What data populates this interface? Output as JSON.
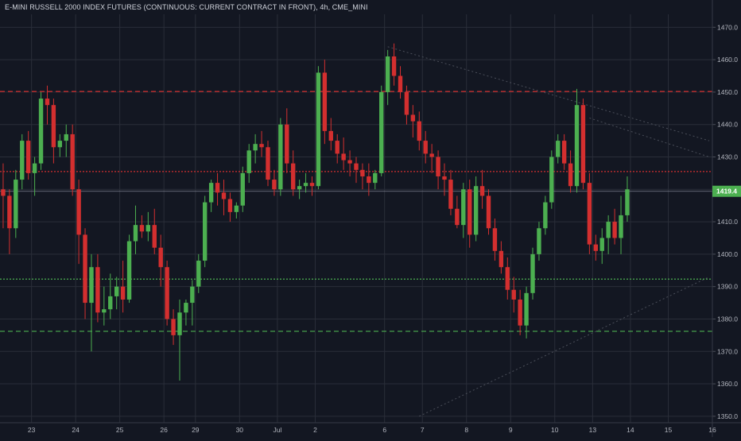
{
  "chart_data": {
    "type": "candlestick",
    "title": "E-MINI RUSSELL 2000 INDEX FUTURES (CONTINUOUS: CURRENT CONTRACT IN FRONT), 4h, CME_MINI",
    "ylim": [
      1348,
      1474
    ],
    "y_ticks": [
      1350,
      1360,
      1370,
      1380,
      1390,
      1400,
      1410,
      1420,
      1430,
      1440,
      1450,
      1460,
      1470
    ],
    "y_tick_labels": [
      "1350.0",
      "1360.0",
      "1370.0",
      "1380.0",
      "1390.0",
      "1400.0",
      "1410.0",
      "1420.0",
      "1430.0",
      "1440.0",
      "1450.0",
      "1460.0",
      "1470.0"
    ],
    "x_tick_labels": [
      "23",
      "24",
      "25",
      "26",
      "29",
      "30",
      "Jul",
      "2",
      "6",
      "7",
      "8",
      "9",
      "10",
      "13",
      "14",
      "15",
      "16"
    ],
    "x_tick_bar_index": [
      4.5,
      11.5,
      18.5,
      25.5,
      30.5,
      37.5,
      43.5,
      49.5,
      60.5,
      66.5,
      73.5,
      80.5,
      87.5,
      93.5,
      99.5,
      105.5,
      112.5
    ],
    "bars_visible_extent": 113,
    "last_price_label": "1419.4",
    "last_price": 1419.4,
    "colors": {
      "up": "#4caf50",
      "down": "#d32f2f",
      "background": "#131722",
      "grid": "#2a2e39",
      "text": "#b2b5be"
    },
    "horizontal_lines": [
      {
        "price": 1450.2,
        "style": "dashed",
        "color": "#d32f2f"
      },
      {
        "price": 1425.5,
        "style": "dotted",
        "color": "#d32f2f"
      },
      {
        "price": 1419.4,
        "style": "solid",
        "color": "#7d8190"
      },
      {
        "price": 1392.3,
        "style": "dotted",
        "color": "#4caf50"
      },
      {
        "price": 1376.2,
        "style": "dashed",
        "color": "#4caf50"
      }
    ],
    "trend_lines": [
      {
        "from": [
          61,
          1464
        ],
        "to": [
          112,
          1435
        ]
      },
      {
        "from": [
          93,
          1442
        ],
        "to": [
          112,
          1430
        ]
      },
      {
        "from": [
          66,
          1350
        ],
        "to": [
          112,
          1393
        ]
      }
    ],
    "ohlc": [
      [
        1420,
        1428,
        1408,
        1418
      ],
      [
        1418,
        1420,
        1400,
        1408
      ],
      [
        1408,
        1426,
        1405,
        1423
      ],
      [
        1423,
        1437,
        1420,
        1435
      ],
      [
        1435,
        1438,
        1423,
        1425
      ],
      [
        1425,
        1430,
        1418,
        1428
      ],
      [
        1428,
        1450,
        1426,
        1448
      ],
      [
        1448,
        1452,
        1440,
        1446
      ],
      [
        1446,
        1448,
        1428,
        1433
      ],
      [
        1433,
        1437,
        1430,
        1435
      ],
      [
        1435,
        1440,
        1430,
        1437
      ],
      [
        1437,
        1440,
        1418,
        1420
      ],
      [
        1420,
        1423,
        1397,
        1406
      ],
      [
        1406,
        1408,
        1380,
        1385
      ],
      [
        1385,
        1400,
        1370,
        1396
      ],
      [
        1396,
        1400,
        1379,
        1382
      ],
      [
        1382,
        1390,
        1378,
        1383
      ],
      [
        1383,
        1394,
        1380,
        1387
      ],
      [
        1387,
        1393,
        1383,
        1390
      ],
      [
        1390,
        1398,
        1382,
        1386
      ],
      [
        1386,
        1406,
        1385,
        1404
      ],
      [
        1404,
        1415,
        1400,
        1409
      ],
      [
        1409,
        1412,
        1405,
        1407
      ],
      [
        1407,
        1413,
        1404,
        1409
      ],
      [
        1409,
        1414,
        1400,
        1402
      ],
      [
        1402,
        1406,
        1390,
        1396
      ],
      [
        1396,
        1398,
        1378,
        1380
      ],
      [
        1380,
        1383,
        1372,
        1375
      ],
      [
        1375,
        1386,
        1361,
        1382
      ],
      [
        1382,
        1386,
        1378,
        1385
      ],
      [
        1385,
        1392,
        1378,
        1390
      ],
      [
        1390,
        1400,
        1388,
        1398
      ],
      [
        1398,
        1418,
        1396,
        1416
      ],
      [
        1416,
        1423,
        1413,
        1422
      ],
      [
        1422,
        1425,
        1415,
        1419
      ],
      [
        1419,
        1423,
        1412,
        1417
      ],
      [
        1417,
        1419,
        1410,
        1413
      ],
      [
        1413,
        1416,
        1411,
        1415
      ],
      [
        1415,
        1427,
        1413,
        1425
      ],
      [
        1425,
        1434,
        1422,
        1432
      ],
      [
        1432,
        1437,
        1428,
        1434
      ],
      [
        1434,
        1438,
        1430,
        1433
      ],
      [
        1433,
        1435,
        1421,
        1423
      ],
      [
        1423,
        1426,
        1418,
        1420
      ],
      [
        1420,
        1442,
        1418,
        1440
      ],
      [
        1440,
        1445,
        1425,
        1428
      ],
      [
        1428,
        1432,
        1418,
        1420
      ],
      [
        1420,
        1423,
        1417,
        1421
      ],
      [
        1421,
        1425,
        1419,
        1422
      ],
      [
        1422,
        1424,
        1418,
        1421
      ],
      [
        1421,
        1458,
        1420,
        1456
      ],
      [
        1456,
        1460,
        1434,
        1438
      ],
      [
        1438,
        1442,
        1432,
        1435
      ],
      [
        1435,
        1437,
        1428,
        1431
      ],
      [
        1431,
        1436,
        1426,
        1429
      ],
      [
        1429,
        1432,
        1424,
        1428
      ],
      [
        1428,
        1430,
        1422,
        1426
      ],
      [
        1426,
        1428,
        1420,
        1424
      ],
      [
        1424,
        1428,
        1418,
        1422
      ],
      [
        1422,
        1426,
        1420,
        1425
      ],
      [
        1425,
        1452,
        1424,
        1450
      ],
      [
        1450,
        1463,
        1446,
        1461
      ],
      [
        1461,
        1465,
        1452,
        1455
      ],
      [
        1455,
        1458,
        1448,
        1450
      ],
      [
        1450,
        1452,
        1440,
        1443
      ],
      [
        1443,
        1446,
        1436,
        1441
      ],
      [
        1441,
        1444,
        1432,
        1435
      ],
      [
        1435,
        1438,
        1428,
        1431
      ],
      [
        1431,
        1434,
        1425,
        1430
      ],
      [
        1430,
        1432,
        1420,
        1424
      ],
      [
        1424,
        1428,
        1418,
        1423
      ],
      [
        1423,
        1426,
        1412,
        1414
      ],
      [
        1414,
        1418,
        1408,
        1409
      ],
      [
        1409,
        1422,
        1405,
        1420
      ],
      [
        1420,
        1423,
        1402,
        1406
      ],
      [
        1406,
        1424,
        1404,
        1421
      ],
      [
        1421,
        1426,
        1414,
        1418
      ],
      [
        1418,
        1420,
        1406,
        1408
      ],
      [
        1408,
        1411,
        1398,
        1401
      ],
      [
        1401,
        1404,
        1394,
        1396
      ],
      [
        1396,
        1399,
        1386,
        1389
      ],
      [
        1389,
        1393,
        1382,
        1386
      ],
      [
        1386,
        1389,
        1375,
        1378
      ],
      [
        1378,
        1390,
        1374,
        1388
      ],
      [
        1388,
        1402,
        1386,
        1400
      ],
      [
        1400,
        1410,
        1398,
        1408
      ],
      [
        1408,
        1418,
        1406,
        1416
      ],
      [
        1416,
        1432,
        1414,
        1430
      ],
      [
        1430,
        1437,
        1428,
        1435
      ],
      [
        1435,
        1437,
        1426,
        1428
      ],
      [
        1428,
        1432,
        1419,
        1421
      ],
      [
        1421,
        1451,
        1419,
        1446
      ],
      [
        1446,
        1448,
        1420,
        1422
      ],
      [
        1422,
        1425,
        1400,
        1403
      ],
      [
        1403,
        1406,
        1398,
        1401
      ],
      [
        1401,
        1408,
        1397,
        1405
      ],
      [
        1405,
        1412,
        1400,
        1410
      ],
      [
        1410,
        1414,
        1403,
        1405
      ],
      [
        1405,
        1418,
        1400,
        1412
      ],
      [
        1412,
        1424,
        1410,
        1420
      ]
    ]
  }
}
